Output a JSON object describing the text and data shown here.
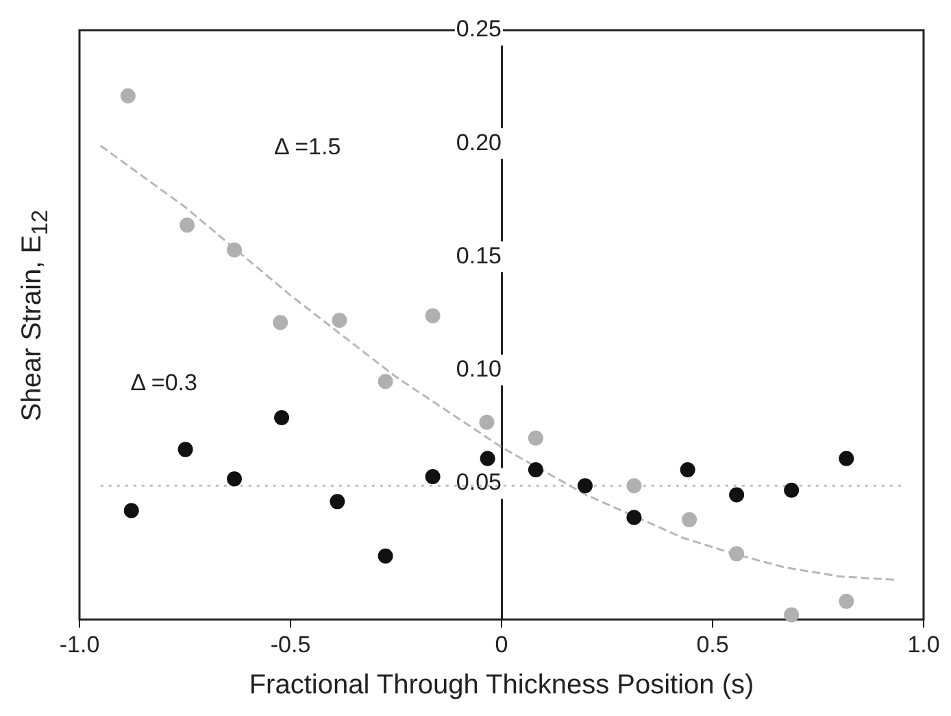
{
  "chart_data": {
    "type": "scatter",
    "xlabel": "Fractional Through Thickness Position (s)",
    "ylabel": "Shear Strain, E$_{12}$",
    "xlim": [
      -1.0,
      1.0
    ],
    "xticks": [
      {
        "value": -1,
        "label": "-1.0"
      },
      {
        "value": -0.5,
        "label": "-0.5"
      },
      0,
      {
        "value": 0.5,
        "label": "0.5"
      },
      {
        "value": 1,
        "label": "1.0"
      }
    ],
    "ylim": [
      -0.01,
      0.25
    ],
    "yticks": [
      0.05,
      {
        "value": 0.1,
        "label": "0.10"
      },
      0.15,
      {
        "value": 0.2,
        "label": "0.20"
      },
      0.25
    ],
    "grid": false,
    "legend": false,
    "marker": "circle",
    "annotations": [
      "Δ =1.5",
      "Δ =0.3"
    ],
    "series": [
      {
        "color": "#111111",
        "x": [
          -0.877,
          -0.749,
          -0.633,
          -0.521,
          -0.389,
          -0.275,
          -0.163,
          -0.033,
          0.081,
          0.198,
          0.314,
          0.441,
          0.557,
          0.687,
          0.817
        ],
        "values": [
          0.038,
          0.065,
          0.052,
          0.079,
          0.042,
          0.018,
          0.053,
          0.061,
          0.056,
          0.049,
          0.035,
          0.056,
          0.045,
          0.047,
          0.061
        ]
      },
      {
        "color": "#b0b0b0",
        "x": [
          -0.885,
          -0.745,
          -0.633,
          -0.524,
          -0.384,
          -0.275,
          -0.163,
          -0.035,
          0.081,
          0.314,
          0.445,
          0.557,
          0.687,
          0.817
        ],
        "values": [
          0.221,
          0.164,
          0.153,
          0.121,
          0.122,
          0.095,
          0.124,
          0.077,
          0.07,
          0.049,
          0.034,
          0.019,
          -0.008,
          -0.002
        ]
      },
      {
        "type": "line",
        "marker": "none",
        "color": "#b8b8b8",
        "line_style": "dashed",
        "x": [
          -0.95,
          -0.75,
          -0.5,
          -0.25,
          0,
          0.2,
          0.43,
          0.55,
          0.67,
          0.8,
          0.93
        ],
        "values": [
          0.199,
          0.172,
          0.133,
          0.097,
          0.066,
          0.045,
          0.026,
          0.019,
          0.013,
          0.009,
          0.0075
        ]
      },
      {
        "type": "line",
        "marker": "none",
        "color": "#c0c0c0",
        "line_style": "dotted",
        "x": [
          -0.95,
          0.95
        ],
        "values": [
          0.049,
          0.049
        ]
      }
    ]
  }
}
